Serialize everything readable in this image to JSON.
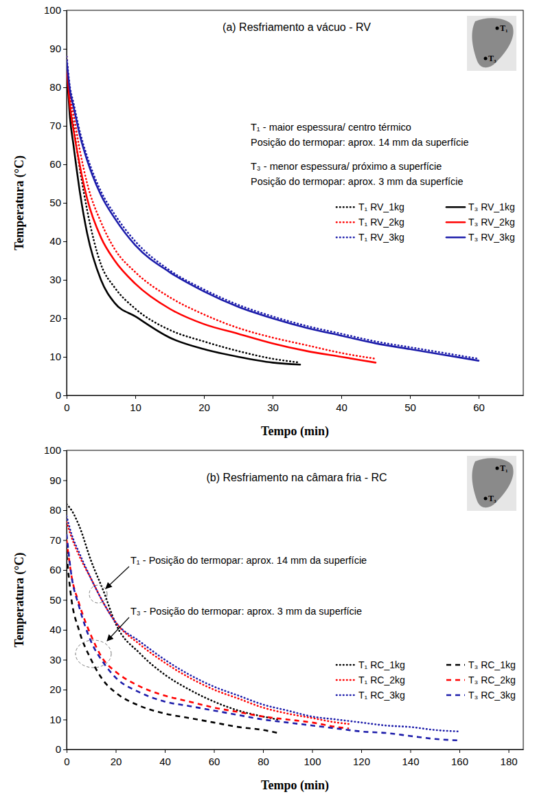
{
  "chart_data": [
    {
      "type": "line",
      "title": "(a) Resfriamento a vácuo - RV",
      "x_label": "Tempo (min)",
      "y_label": "Temperatura (°C)",
      "xlim": [
        0,
        66.5
      ],
      "ylim": [
        0,
        100
      ],
      "xticks": [
        0,
        10,
        20,
        30,
        40,
        50,
        60
      ],
      "yticks": [
        0,
        10,
        20,
        30,
        40,
        50,
        60,
        70,
        80,
        90,
        100
      ],
      "grid": false,
      "legend": "right",
      "annotations": [
        "T₁ - maior espessura/ centro térmico",
        "Posição do termopar: aprox. 14 mm da superfície",
        "T₃ - menor espessura/ próximo a superfície",
        "Posição do termopar: aprox. 3 mm da superfície"
      ],
      "inset_labels": [
        "T₁",
        "T₃"
      ],
      "series": [
        {
          "name": "T₁ RV_1kg",
          "color": "#000000",
          "line_style": "dotted",
          "x": [
            0,
            0.5,
            1,
            2,
            3,
            5,
            7,
            10,
            15,
            20,
            25,
            30,
            34
          ],
          "values": [
            88,
            76,
            70,
            58,
            48,
            34,
            28,
            22.5,
            17,
            14,
            11.5,
            9.5,
            8.5
          ]
        },
        {
          "name": "T₃ RV_1kg",
          "color": "#000000",
          "line_style": "solid",
          "x": [
            0,
            0.5,
            1,
            2,
            3,
            5,
            7,
            10,
            15,
            20,
            25,
            30,
            34
          ],
          "values": [
            86,
            72,
            65,
            52,
            42,
            30,
            24,
            20.5,
            15,
            12,
            10,
            8.5,
            8
          ]
        },
        {
          "name": "T₁ RV_2kg",
          "color": "#ff0000",
          "line_style": "dotted",
          "x": [
            0,
            0.5,
            1,
            2,
            3,
            5,
            7,
            10,
            15,
            20,
            25,
            30,
            35,
            40,
            45
          ],
          "values": [
            88,
            78,
            73,
            63,
            55,
            45,
            38,
            32,
            25.5,
            21,
            17.5,
            15,
            13,
            11,
            9.5
          ]
        },
        {
          "name": "T₃ RV_2kg",
          "color": "#ff0000",
          "line_style": "solid",
          "x": [
            0,
            0.5,
            1,
            2,
            3,
            5,
            7,
            10,
            15,
            20,
            25,
            30,
            35,
            40,
            45
          ],
          "values": [
            86,
            75,
            69,
            59,
            51,
            41,
            35,
            29,
            22.5,
            18.5,
            16,
            13.5,
            11.5,
            10,
            8.5
          ]
        },
        {
          "name": "T₁ RV_3kg",
          "color": "#1c1caa",
          "line_style": "dotted",
          "x": [
            0,
            0.5,
            1,
            2,
            3,
            5,
            7,
            10,
            15,
            20,
            25,
            30,
            35,
            40,
            45,
            50,
            55,
            60
          ],
          "values": [
            88,
            80,
            76,
            68,
            62,
            53,
            47,
            40,
            32.5,
            27.5,
            23.5,
            20.5,
            18,
            16,
            14,
            12.5,
            11,
            9.5
          ]
        },
        {
          "name": "T₃ RV_3kg",
          "color": "#1c1caa",
          "line_style": "solid",
          "x": [
            0,
            0.5,
            1,
            2,
            3,
            5,
            7,
            10,
            15,
            20,
            25,
            30,
            35,
            40,
            45,
            50,
            55,
            60
          ],
          "values": [
            87,
            79,
            75,
            67,
            61,
            52,
            46,
            39,
            32,
            27,
            23,
            20,
            17.5,
            15.5,
            13.5,
            12,
            10.5,
            9
          ]
        }
      ]
    },
    {
      "type": "line",
      "title": "(b) Resfriamento na câmara fria - RC",
      "x_label": "Tempo (min)",
      "y_label": "Temperatura (°C)",
      "xlim": [
        0,
        186
      ],
      "ylim": [
        0,
        100
      ],
      "xticks": [
        0,
        20,
        40,
        60,
        80,
        100,
        120,
        140,
        160,
        180
      ],
      "yticks": [
        0,
        10,
        20,
        30,
        40,
        50,
        60,
        70,
        80,
        90,
        100
      ],
      "grid": false,
      "legend": "lower right",
      "annotations": [
        "T₁ - Posição do termopar: aprox. 14 mm da superfície",
        "T₃ - Posição do termopar: aprox. 3 mm da superfície"
      ],
      "inset_labels": [
        "T₁",
        "T₃"
      ],
      "series": [
        {
          "name": "T₁ RC_1kg",
          "color": "#000000",
          "line_style": "dotted",
          "x": [
            0,
            2,
            5,
            10,
            15,
            20,
            30,
            40,
            50,
            60,
            70,
            80,
            86
          ],
          "values": [
            82,
            80,
            75,
            63,
            53,
            42,
            32,
            25,
            20,
            16,
            13,
            11,
            10
          ]
        },
        {
          "name": "T₃ RC_1kg",
          "color": "#000000",
          "line_style": "dashed",
          "x": [
            0,
            2,
            5,
            10,
            15,
            20,
            30,
            40,
            50,
            60,
            70,
            80,
            86
          ],
          "values": [
            65,
            50,
            40,
            30,
            23,
            19,
            14.5,
            12,
            10.5,
            9,
            7.5,
            6.5,
            5.5
          ]
        },
        {
          "name": "T₁ RC_2kg",
          "color": "#ff0000",
          "line_style": "dotted",
          "x": [
            0,
            2,
            5,
            10,
            15,
            20,
            30,
            40,
            50,
            60,
            70,
            80,
            90,
            100,
            110,
            115
          ],
          "values": [
            76,
            71,
            65,
            57,
            49,
            42.5,
            35,
            29,
            24,
            20,
            17,
            14,
            12,
            10.5,
            9,
            8.5
          ]
        },
        {
          "name": "T₃ RC_2kg",
          "color": "#ff0000",
          "line_style": "dashed",
          "x": [
            0,
            2,
            5,
            10,
            15,
            20,
            30,
            40,
            50,
            60,
            70,
            80,
            90,
            100,
            110,
            115
          ],
          "values": [
            70,
            58,
            49,
            38,
            30,
            26,
            21,
            18,
            16,
            14,
            12.5,
            11,
            10,
            9,
            7.5,
            7
          ]
        },
        {
          "name": "T₁ RC_3kg",
          "color": "#1c1caa",
          "line_style": "dotted",
          "x": [
            0,
            2,
            5,
            10,
            15,
            20,
            30,
            40,
            50,
            60,
            70,
            80,
            90,
            100,
            110,
            120,
            130,
            140,
            150,
            160
          ],
          "values": [
            78,
            72,
            66,
            57,
            49,
            42.5,
            36,
            30,
            25,
            21,
            18,
            15,
            13,
            11,
            10,
            9,
            8,
            7.5,
            6.5,
            6
          ]
        },
        {
          "name": "T₃ RC_3kg",
          "color": "#1c1caa",
          "line_style": "dashed",
          "x": [
            0,
            2,
            5,
            10,
            15,
            20,
            30,
            40,
            50,
            60,
            70,
            80,
            90,
            100,
            110,
            120,
            130,
            140,
            150,
            160
          ],
          "values": [
            72,
            58,
            48,
            36,
            29,
            24,
            19,
            16,
            14.5,
            13,
            11.5,
            10,
            9,
            8,
            7,
            6,
            5.5,
            4.5,
            3.5,
            3
          ]
        }
      ]
    }
  ]
}
